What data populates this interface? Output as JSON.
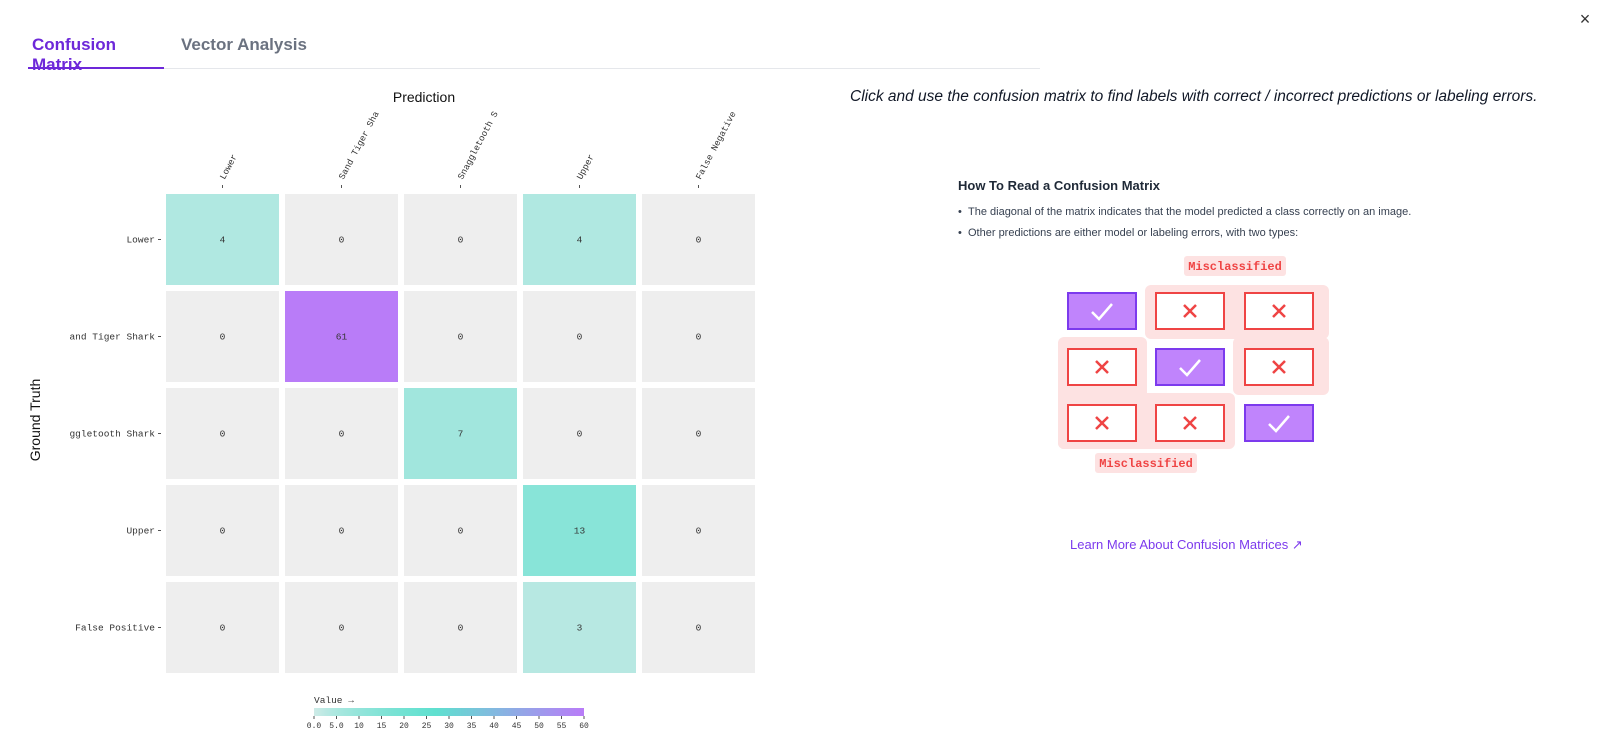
{
  "close_button": "×",
  "tabs": [
    {
      "label": "Confusion Matrix",
      "active": true
    },
    {
      "label": "Vector Analysis",
      "active": false
    }
  ],
  "instruction": "Click and use the confusion matrix to find labels with correct / incorrect predictions or labeling errors.",
  "howto": {
    "title": "How To Read a Confusion Matrix",
    "bullets": [
      "The diagonal of the matrix indicates that the model predicted a class correctly on an image.",
      "Other predictions are either model or labeling errors, with two types:"
    ],
    "misclassified_label": "Misclassified",
    "learn_more": "Learn More About Confusion Matrices ↗"
  },
  "colors": {
    "accent": "#6d28d9",
    "zero_cell": "#eeeeee",
    "teal_low": "#dcecea",
    "teal_high": "#5fe0cf",
    "purple_high": "#b97cf8",
    "error_red": "#ef4444",
    "error_bg": "#fde2e2"
  },
  "chart_data": {
    "type": "heatmap",
    "title": "Prediction",
    "xlabel": "Prediction",
    "ylabel": "Ground Truth",
    "x_tick_labels": [
      "Lower",
      "Sand Tiger Sha",
      "Snaggletooth S",
      "Upper",
      "False Negative"
    ],
    "y_tick_labels": [
      "Lower",
      "and Tiger Shark",
      "ggletooth Shark",
      "Upper",
      "False Positive"
    ],
    "values": [
      [
        4,
        0,
        0,
        4,
        0
      ],
      [
        0,
        61,
        0,
        0,
        0
      ],
      [
        0,
        0,
        7,
        0,
        0
      ],
      [
        0,
        0,
        0,
        13,
        0
      ],
      [
        0,
        0,
        0,
        3,
        0
      ]
    ],
    "colorbar": {
      "title": "Value →",
      "range": [
        0,
        60
      ],
      "ticks": [
        "0.0",
        "5.0",
        "10",
        "15",
        "20",
        "25",
        "30",
        "35",
        "40",
        "45",
        "50",
        "55",
        "60"
      ]
    }
  }
}
